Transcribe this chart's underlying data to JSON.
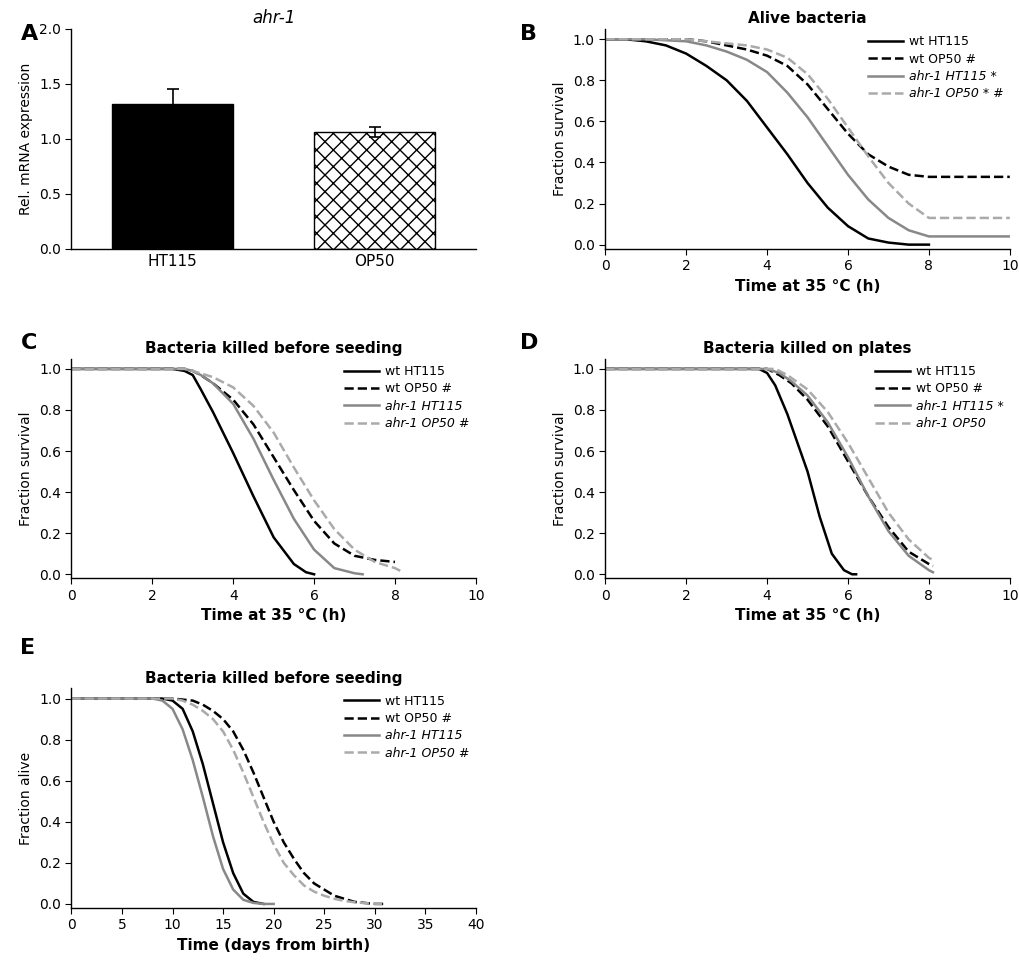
{
  "panel_A": {
    "title": "ahr-1",
    "ylabel": "Rel. mRNA expression",
    "categories": [
      "HT115",
      "OP50"
    ],
    "values": [
      1.32,
      1.06
    ],
    "errors": [
      0.13,
      0.045
    ],
    "ylim": [
      0,
      2.0
    ],
    "yticks": [
      0.0,
      0.5,
      1.0,
      1.5,
      2.0
    ]
  },
  "panel_B": {
    "title": "Alive bacteria",
    "xlabel": "Time at 35 °C (h)",
    "ylabel": "Fraction survival",
    "xlim": [
      0,
      10
    ],
    "ylim": [
      -0.02,
      1.05
    ],
    "xticks": [
      0,
      2,
      4,
      6,
      8,
      10
    ],
    "yticks": [
      0.0,
      0.2,
      0.4,
      0.6,
      0.8,
      1.0
    ],
    "legend_wt": [
      "wt HT115",
      "wt OP50 #"
    ],
    "legend_ahr": [
      "HT115 *",
      "OP50 * #"
    ]
  },
  "panel_C": {
    "title": "Bacteria killed before seeding",
    "xlabel": "Time at 35 °C (h)",
    "ylabel": "Fraction survival",
    "xlim": [
      0,
      10
    ],
    "ylim": [
      -0.02,
      1.05
    ],
    "xticks": [
      0,
      2,
      4,
      6,
      8,
      10
    ],
    "yticks": [
      0.0,
      0.2,
      0.4,
      0.6,
      0.8,
      1.0
    ],
    "legend_wt": [
      "wt HT115",
      "wt OP50 #"
    ],
    "legend_ahr": [
      "HT115",
      "OP50 #"
    ]
  },
  "panel_D": {
    "title": "Bacteria killed on plates",
    "xlabel": "Time at 35 °C (h)",
    "ylabel": "Fraction survival",
    "xlim": [
      0,
      10
    ],
    "ylim": [
      -0.02,
      1.05
    ],
    "xticks": [
      0,
      2,
      4,
      6,
      8,
      10
    ],
    "yticks": [
      0.0,
      0.2,
      0.4,
      0.6,
      0.8,
      1.0
    ],
    "legend_wt": [
      "wt HT115",
      "wt OP50 #"
    ],
    "legend_ahr": [
      "HT115 *",
      "OP50"
    ]
  },
  "panel_E": {
    "title": "Bacteria killed before seeding",
    "xlabel": "Time (days from birth)",
    "ylabel": "Fraction alive",
    "xlim": [
      0,
      40
    ],
    "ylim": [
      -0.02,
      1.05
    ],
    "xticks": [
      0,
      5,
      10,
      15,
      20,
      25,
      30,
      35,
      40
    ],
    "yticks": [
      0.0,
      0.2,
      0.4,
      0.6,
      0.8,
      1.0
    ],
    "legend_wt": [
      "wt HT115",
      "wt OP50 #"
    ],
    "legend_ahr": [
      "HT115",
      "OP50 #"
    ]
  },
  "colors": {
    "black": "#000000",
    "gray_mid": "#888888",
    "gray_light": "#aaaaaa"
  }
}
